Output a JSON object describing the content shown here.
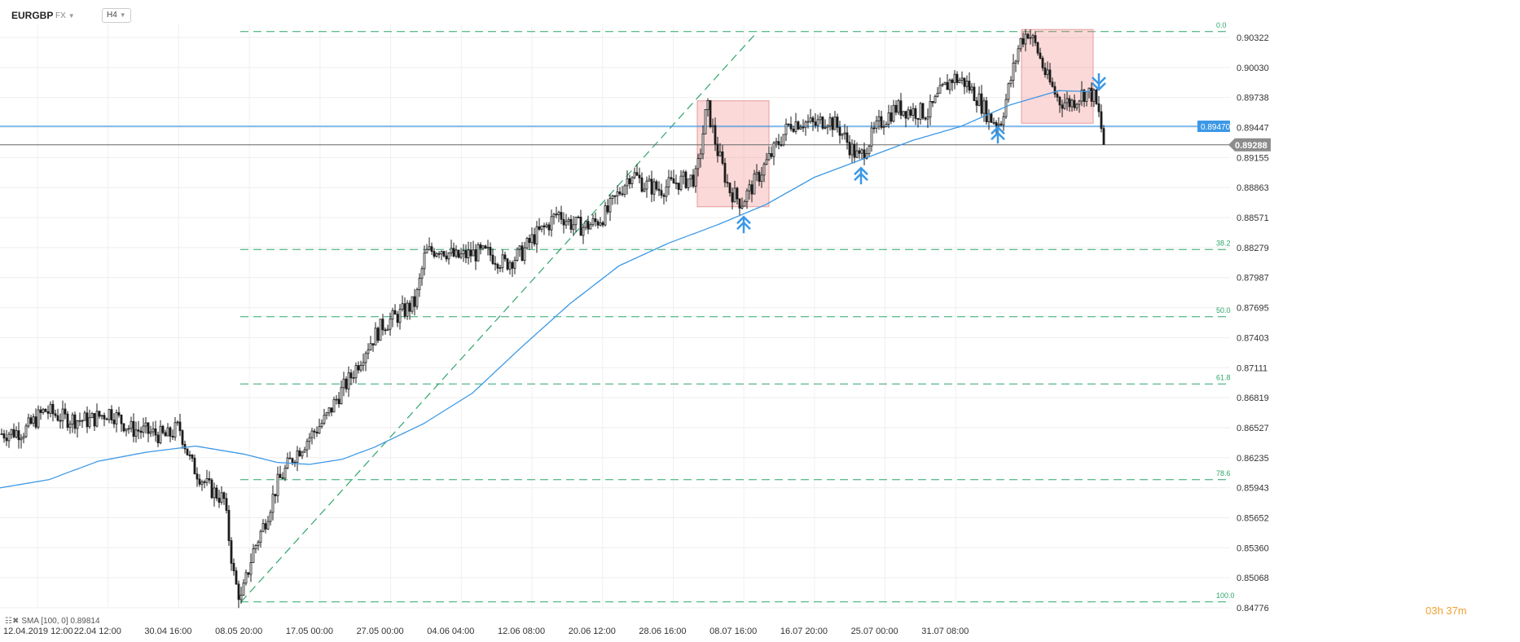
{
  "header": {
    "symbol": "EURGBP",
    "market": "FX",
    "timeframe": "H4",
    "dropdown_caret": "chevron-down-icon"
  },
  "sma_legend": {
    "icon": "indicator-settings-icon",
    "text": "SMA [100, 0] 0.89814"
  },
  "countdown": "03h 37m",
  "colors": {
    "candle": "#1b1b1b",
    "sma": "#3b98e6",
    "support_line": "#3b98e6",
    "price_line": "#666666",
    "fib": "#2ea66b",
    "fib_label": "#2ea66b",
    "zone_fill": "rgba(240,120,120,0.28)",
    "zone_border": "#e89a9a",
    "arrow": "#3b98e6",
    "countdown": "#f0a030"
  },
  "chart_data": {
    "type": "candlestick",
    "symbol": "EURGBP",
    "timeframe": "H4",
    "y_ticks": [
      "0.90322",
      "0.90030",
      "0.89738",
      "0.89447",
      "0.89155",
      "0.88863",
      "0.88571",
      "0.88279",
      "0.87987",
      "0.87695",
      "0.87403",
      "0.87111",
      "0.86819",
      "0.86527",
      "0.86235",
      "0.85943",
      "0.85652",
      "0.85360",
      "0.85068",
      "0.84776"
    ],
    "x_ticks": [
      "12.04.2019  12:00",
      "22.04  12:00",
      "30.04  16:00",
      "08.05  20:00",
      "17.05  00:00",
      "27.05  00:00",
      "04.06  04:00",
      "12.06  08:00",
      "20.06  12:00",
      "28.06  16:00",
      "08.07  16:00",
      "16.07  20:00",
      "25.07  00:00",
      "31.07  08:00"
    ],
    "y_range": [
      0.8475,
      0.9047
    ],
    "x_range": [
      "12.04.2019 12:00",
      "31.07 08:00"
    ],
    "grid": true,
    "close_anchors": [
      [
        0,
        0.8645
      ],
      [
        30,
        0.8648
      ],
      [
        55,
        0.8668
      ],
      [
        80,
        0.866
      ],
      [
        110,
        0.8658
      ],
      [
        135,
        0.8667
      ],
      [
        160,
        0.865
      ],
      [
        185,
        0.8646
      ],
      [
        205,
        0.8642
      ],
      [
        220,
        0.8652
      ],
      [
        235,
        0.8615
      ],
      [
        255,
        0.8593
      ],
      [
        275,
        0.858
      ],
      [
        288,
        0.85
      ],
      [
        296,
        0.8482
      ],
      [
        310,
        0.8528
      ],
      [
        325,
        0.8558
      ],
      [
        340,
        0.8595
      ],
      [
        360,
        0.8623
      ],
      [
        380,
        0.8642
      ],
      [
        400,
        0.866
      ],
      [
        415,
        0.8682
      ],
      [
        430,
        0.87
      ],
      [
        450,
        0.873
      ],
      [
        470,
        0.8752
      ],
      [
        490,
        0.8762
      ],
      [
        510,
        0.8774
      ],
      [
        522,
        0.8822
      ],
      [
        540,
        0.8828
      ],
      [
        560,
        0.8818
      ],
      [
        580,
        0.8822
      ],
      [
        600,
        0.8822
      ],
      [
        620,
        0.8812
      ],
      [
        640,
        0.8822
      ],
      [
        655,
        0.8838
      ],
      [
        670,
        0.8848
      ],
      [
        685,
        0.8862
      ],
      [
        700,
        0.8852
      ],
      [
        715,
        0.8848
      ],
      [
        730,
        0.8852
      ],
      [
        745,
        0.8862
      ],
      [
        760,
        0.8882
      ],
      [
        775,
        0.8902
      ],
      [
        790,
        0.889
      ],
      [
        810,
        0.8885
      ],
      [
        830,
        0.8892
      ],
      [
        855,
        0.8897
      ],
      [
        868,
        0.8968
      ],
      [
        880,
        0.8925
      ],
      [
        895,
        0.8885
      ],
      [
        910,
        0.8872
      ],
      [
        925,
        0.889
      ],
      [
        940,
        0.891
      ],
      [
        955,
        0.893
      ],
      [
        970,
        0.895
      ],
      [
        985,
        0.8952
      ],
      [
        1000,
        0.8948
      ],
      [
        1015,
        0.8955
      ],
      [
        1030,
        0.8945
      ],
      [
        1045,
        0.8925
      ],
      [
        1055,
        0.8915
      ],
      [
        1065,
        0.893
      ],
      [
        1080,
        0.895
      ],
      [
        1100,
        0.8965
      ],
      [
        1120,
        0.8962
      ],
      [
        1140,
        0.896
      ],
      [
        1155,
        0.898
      ],
      [
        1170,
        0.8995
      ],
      [
        1185,
        0.899
      ],
      [
        1200,
        0.8975
      ],
      [
        1215,
        0.8955
      ],
      [
        1228,
        0.895
      ],
      [
        1240,
        0.899
      ],
      [
        1252,
        0.903
      ],
      [
        1262,
        0.904
      ],
      [
        1272,
        0.9025
      ],
      [
        1285,
        0.8995
      ],
      [
        1300,
        0.8972
      ],
      [
        1315,
        0.897
      ],
      [
        1330,
        0.898
      ],
      [
        1342,
        0.8978
      ],
      [
        1350,
        0.8955
      ],
      [
        1355,
        0.893
      ]
    ],
    "sma_100": {
      "name": "SMA [100, 0]",
      "last": 0.89814,
      "anchors": [
        [
          0,
          0.8592
        ],
        [
          60,
          0.86
        ],
        [
          120,
          0.8618
        ],
        [
          180,
          0.8627
        ],
        [
          240,
          0.8633
        ],
        [
          300,
          0.8625
        ],
        [
          340,
          0.8617
        ],
        [
          380,
          0.8615
        ],
        [
          420,
          0.862
        ],
        [
          460,
          0.8632
        ],
        [
          520,
          0.8655
        ],
        [
          580,
          0.8685
        ],
        [
          640,
          0.873
        ],
        [
          700,
          0.8773
        ],
        [
          760,
          0.881
        ],
        [
          820,
          0.8832
        ],
        [
          880,
          0.885
        ],
        [
          940,
          0.887
        ],
        [
          1000,
          0.8897
        ],
        [
          1060,
          0.8915
        ],
        [
          1120,
          0.8933
        ],
        [
          1180,
          0.8947
        ],
        [
          1240,
          0.8968
        ],
        [
          1300,
          0.8982
        ],
        [
          1340,
          0.8981
        ]
      ]
    },
    "horizontal_levels": [
      {
        "name": "support",
        "value": 0.8947,
        "label": "0.89470"
      },
      {
        "name": "last_price",
        "value": 0.89288,
        "label": "0.89288"
      }
    ],
    "fibonacci": {
      "high": 0.904,
      "low": 0.848,
      "levels": [
        {
          "label": "0.0",
          "value": 0.904
        },
        {
          "label": "38.2",
          "value": 0.8826
        },
        {
          "label": "50.0",
          "value": 0.876
        },
        {
          "label": "61.8",
          "value": 0.8694
        },
        {
          "label": "78.6",
          "value": 0.86
        },
        {
          "label": "100.0",
          "value": 0.848
        }
      ]
    },
    "trendline": {
      "from": [
        296,
        0.848
      ],
      "to": [
        930,
        0.904
      ]
    },
    "zones": [
      {
        "from_x": 856,
        "to_x": 944,
        "top": 0.8972,
        "bottom": 0.8868
      },
      {
        "from_x": 1254,
        "to_x": 1342,
        "top": 0.9042,
        "bottom": 0.895
      }
    ],
    "markers": [
      {
        "x": 913,
        "value": 0.8858,
        "dir": "up"
      },
      {
        "x": 1057,
        "value": 0.8906,
        "dir": "up"
      },
      {
        "x": 1225,
        "value": 0.8946,
        "dir": "up"
      },
      {
        "x": 1349,
        "value": 0.8983,
        "dir": "down"
      }
    ]
  }
}
